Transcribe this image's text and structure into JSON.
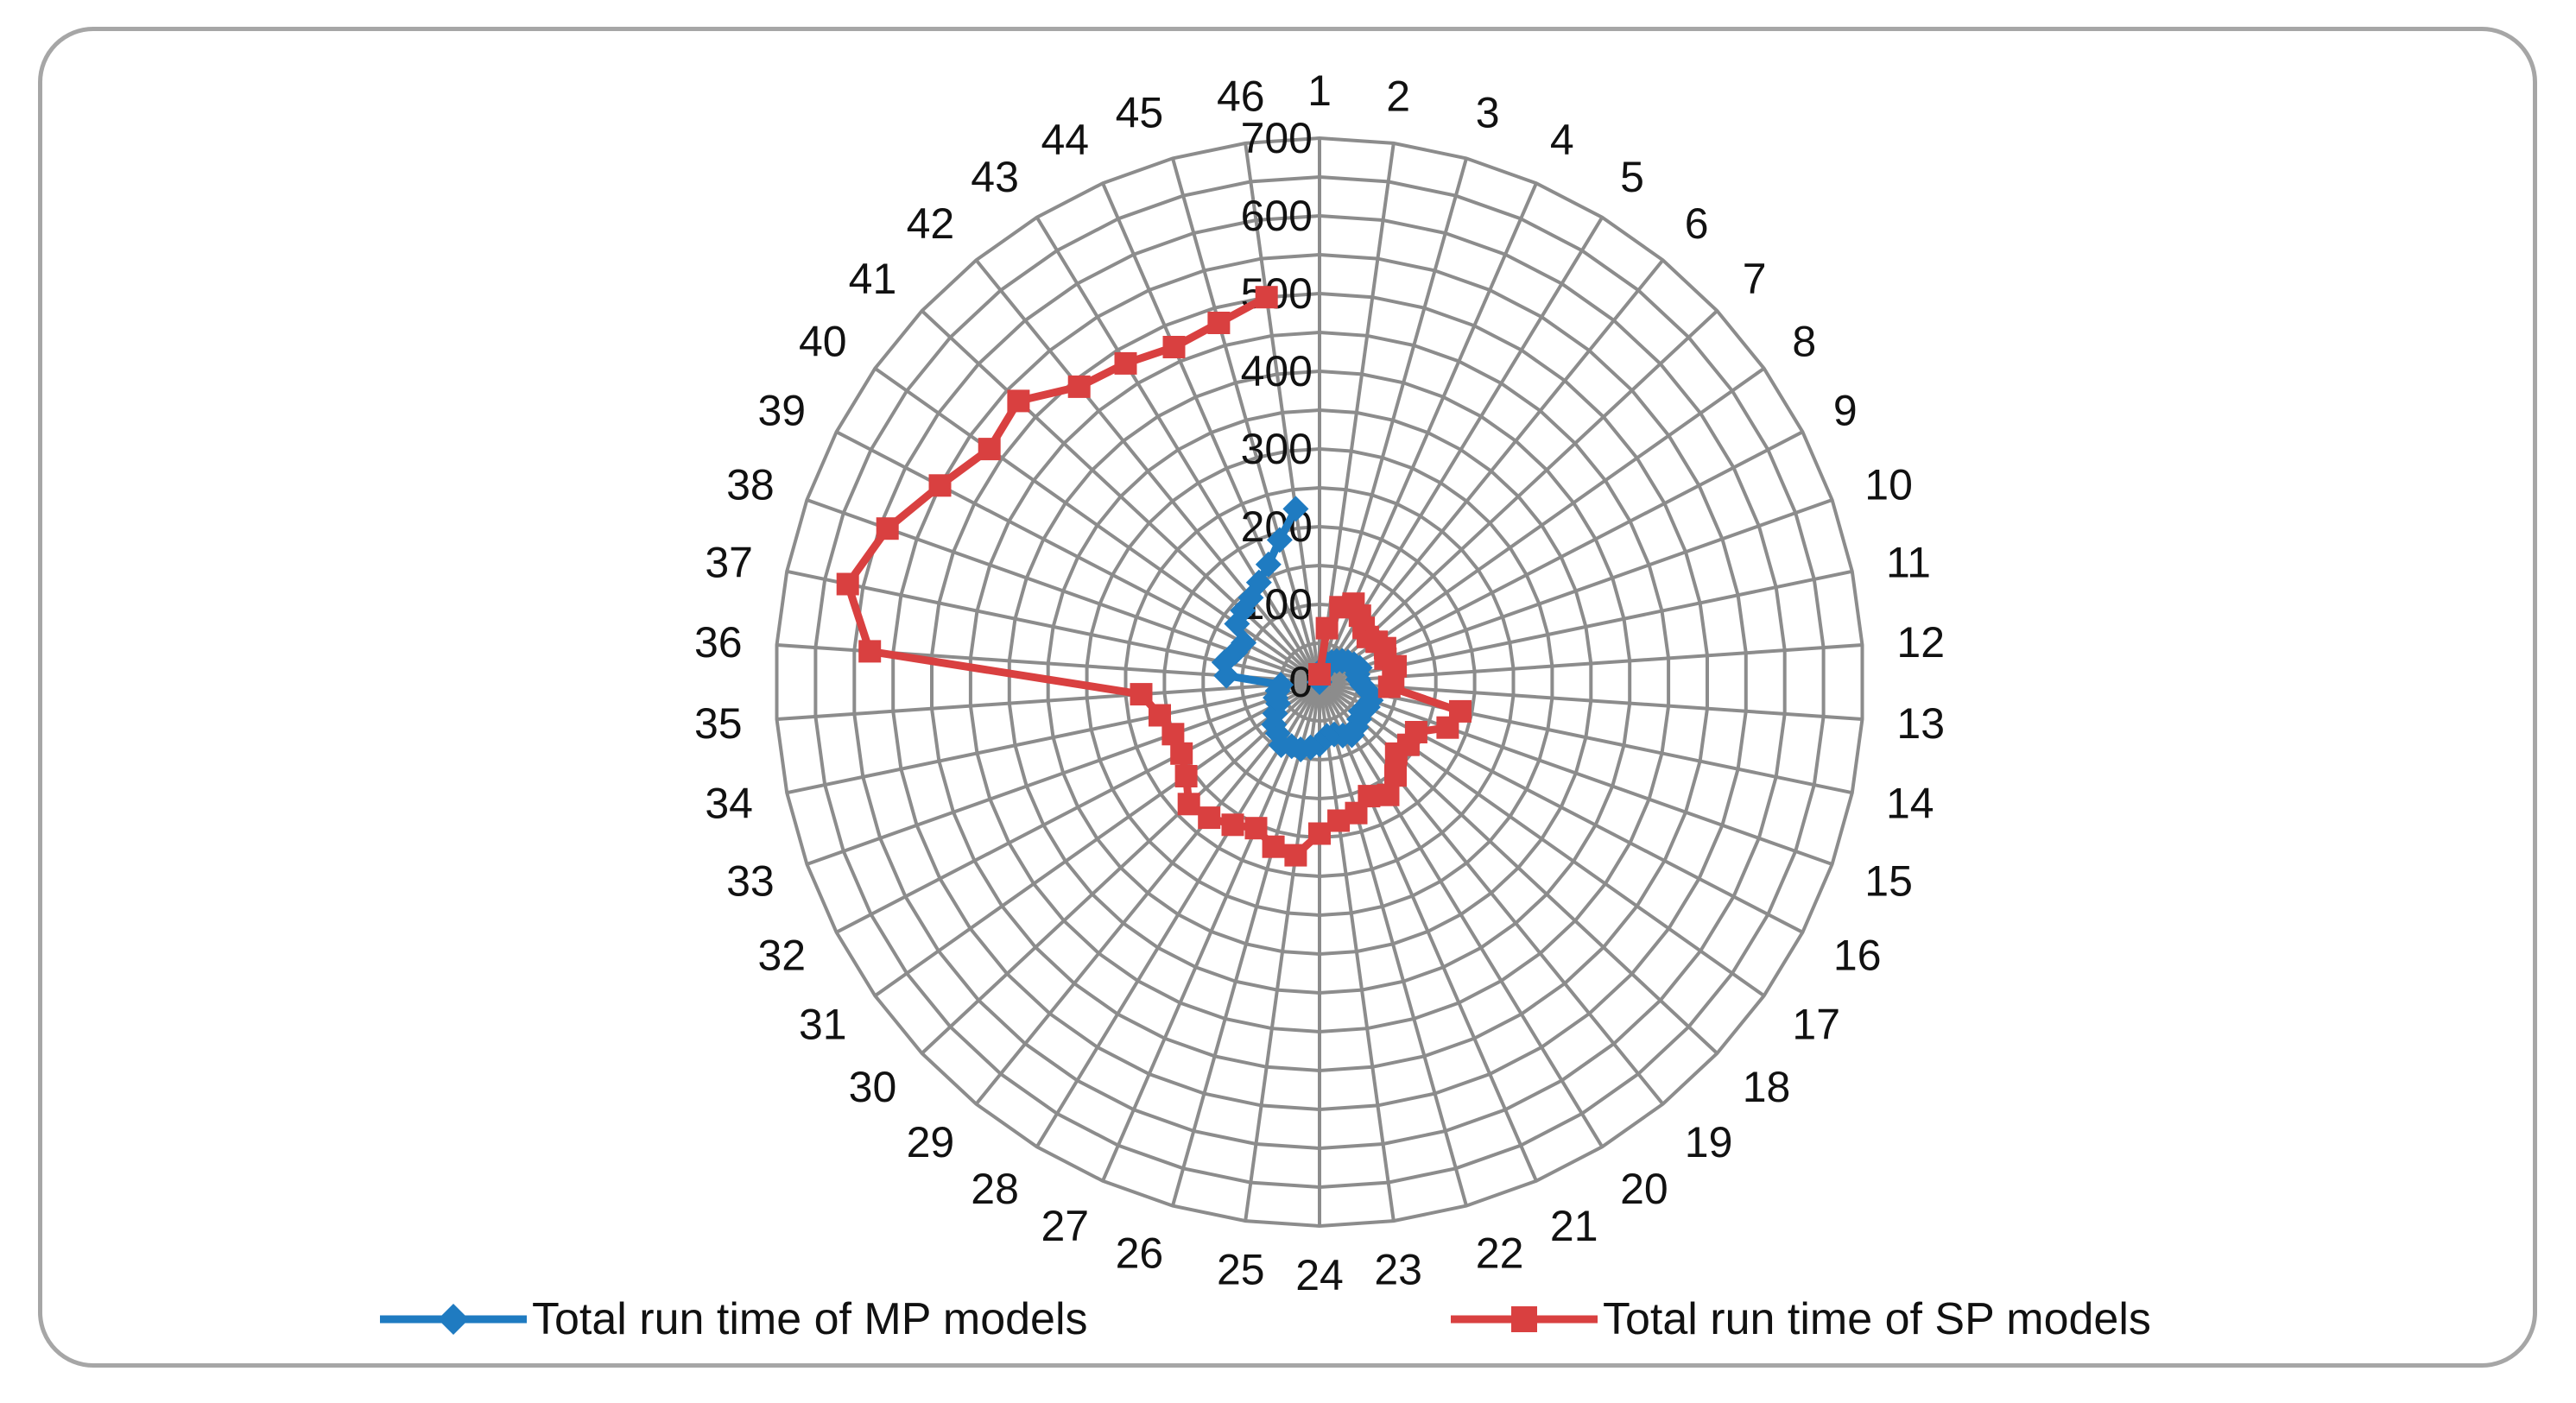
{
  "chart_data": {
    "type": "radar",
    "title": "",
    "categories": [
      "1",
      "2",
      "3",
      "4",
      "5",
      "6",
      "7",
      "8",
      "9",
      "10",
      "11",
      "12",
      "13",
      "14",
      "15",
      "16",
      "17",
      "18",
      "19",
      "20",
      "21",
      "22",
      "23",
      "24",
      "25",
      "26",
      "27",
      "28",
      "29",
      "30",
      "31",
      "32",
      "33",
      "34",
      "35",
      "36",
      "37",
      "38",
      "39",
      "40",
      "41",
      "42",
      "43",
      "44",
      "45",
      "46"
    ],
    "r_axis": {
      "min": 0,
      "max": 700,
      "major_ticks": [
        0,
        100,
        200,
        300,
        400,
        500,
        600,
        700
      ],
      "minor_step": 50
    },
    "series": [
      {
        "name": "Total run time of MP models",
        "color": "#1f7bc1",
        "marker": "diamond",
        "values": [
          0,
          10,
          20,
          25,
          30,
          35,
          40,
          45,
          50,
          55,
          50,
          50,
          55,
          65,
          70,
          70,
          65,
          70,
          75,
          80,
          75,
          70,
          70,
          80,
          85,
          90,
          90,
          95,
          85,
          80,
          70,
          60,
          60,
          55,
          50,
          120,
          125,
          115,
          110,
          130,
          135,
          140,
          150,
          165,
          190,
          225
        ]
      },
      {
        "name": "Total run time of SP models",
        "color": "#d94040",
        "marker": "square",
        "values": [
          10,
          70,
          100,
          110,
          100,
          90,
          85,
          90,
          95,
          90,
          100,
          95,
          90,
          185,
          175,
          140,
          140,
          135,
          155,
          170,
          160,
          175,
          180,
          195,
          225,
          220,
          205,
          215,
          225,
          230,
          210,
          200,
          200,
          210,
          230,
          580,
          620,
          590,
          550,
          520,
          530,
          490,
          480,
          470,
          480,
          500
        ]
      }
    ]
  }
}
